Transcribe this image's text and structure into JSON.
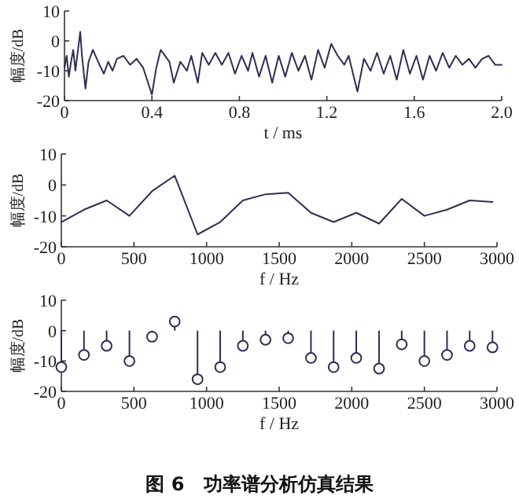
{
  "chart_data": [
    {
      "type": "line",
      "xlabel": "t / ms",
      "ylabel": "幅度/dB",
      "xlim": [
        0,
        2
      ],
      "ylim": [
        -20,
        10
      ],
      "xticks": [
        0,
        0.4,
        0.8,
        1.2,
        1.6,
        {
          "value": 2,
          "label": "2.0"
        }
      ],
      "yticks": [
        -20,
        -10,
        0,
        10
      ],
      "line_style": "solid",
      "x": [
        0,
        0.01,
        0.02,
        0.03,
        0.04,
        0.05,
        0.072,
        0.08,
        0.096,
        0.11,
        0.13,
        0.16,
        0.18,
        0.2,
        0.22,
        0.24,
        0.27,
        0.3,
        0.33,
        0.36,
        0.4,
        0.42,
        0.44,
        0.48,
        0.5,
        0.53,
        0.56,
        0.58,
        0.61,
        0.63,
        0.66,
        0.69,
        0.72,
        0.75,
        0.78,
        0.81,
        0.84,
        0.86,
        0.89,
        0.92,
        0.95,
        0.98,
        1.01,
        1.04,
        1.07,
        1.1,
        1.13,
        1.16,
        1.19,
        1.22,
        1.25,
        1.28,
        1.3,
        1.34,
        1.37,
        1.4,
        1.43,
        1.46,
        1.49,
        1.52,
        1.55,
        1.58,
        1.61,
        1.64,
        1.67,
        1.7,
        1.73,
        1.76,
        1.79,
        1.82,
        1.85,
        1.88,
        1.91,
        1.94,
        1.97,
        2.0
      ],
      "series": [
        {
          "color": "#2e2e55",
          "values": [
            -9,
            -5,
            -12,
            -7,
            -3,
            -10,
            3,
            -5,
            -16,
            -7,
            -3,
            -8,
            -11,
            -7,
            -10,
            -6,
            -5,
            -8,
            -6,
            -9,
            -18,
            -9,
            -3,
            -7,
            -14,
            -7,
            -10,
            -5,
            -14,
            -4,
            -8,
            -4,
            -8,
            -4,
            -11,
            -5,
            -10,
            -4,
            -12,
            -5,
            -14,
            -5,
            -12,
            -4,
            -10,
            -5,
            -13,
            -3,
            -9,
            -1,
            -5,
            -8,
            -5,
            -17,
            -6,
            -10,
            -4,
            -11,
            -5,
            -13,
            -3,
            -11,
            -5,
            -13,
            -5,
            -10,
            -4,
            -9,
            -5,
            -8,
            -6,
            -9,
            -6,
            -5,
            -8,
            -8
          ]
        }
      ]
    },
    {
      "type": "line",
      "xlabel": "f / Hz",
      "ylabel": "幅度/dB",
      "xlim": [
        0,
        3000
      ],
      "ylim": [
        -20,
        10
      ],
      "xticks": [
        0,
        500,
        1000,
        1500,
        2000,
        2500,
        3000
      ],
      "yticks": [
        -20,
        -10,
        0,
        10
      ],
      "line_style": "solid",
      "x": [
        0,
        156,
        312,
        469,
        625,
        781,
        938,
        1094,
        1250,
        1406,
        1562,
        1719,
        1875,
        2031,
        2188,
        2344,
        2500,
        2656,
        2812,
        2969
      ],
      "series": [
        {
          "color": "#2e2e55",
          "values": [
            -12,
            -8,
            -5,
            -10,
            -2,
            3,
            -16,
            -12,
            -5,
            -3,
            -2.5,
            -9,
            -12,
            -9,
            -12.5,
            -4.5,
            -10,
            -8,
            -5,
            -5.5
          ]
        }
      ]
    },
    {
      "type": "lollipop",
      "xlabel": "f / Hz",
      "ylabel": "幅度/dB",
      "xlim": [
        0,
        3000
      ],
      "ylim": [
        -20,
        10
      ],
      "xticks": [
        0,
        500,
        1000,
        1500,
        2000,
        2500,
        3000
      ],
      "yticks": [
        -20,
        -10,
        0,
        10
      ],
      "marker": "circle",
      "x": [
        0,
        156,
        312,
        469,
        625,
        781,
        938,
        1094,
        1250,
        1406,
        1562,
        1719,
        1875,
        2031,
        2188,
        2344,
        2500,
        2656,
        2812,
        2969
      ],
      "series": [
        {
          "color": "#2e2e55",
          "values": [
            -12,
            -8,
            -5,
            -10,
            -2,
            3,
            -16,
            -12,
            -5,
            -3,
            -2.5,
            -9,
            -12,
            -9,
            -12.5,
            -4.5,
            -10,
            -8,
            -5,
            -5.5
          ]
        }
      ],
      "annotations": [
        "图 6　功率谱分析仿真结果"
      ]
    }
  ]
}
